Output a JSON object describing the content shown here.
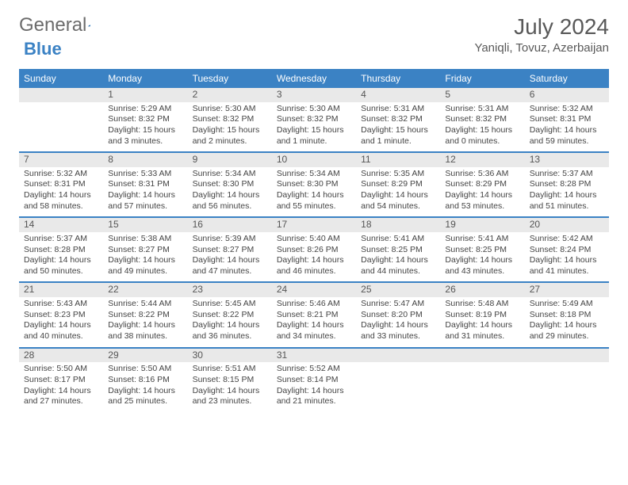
{
  "logo": {
    "word1": "General",
    "word2": "Blue"
  },
  "title": "July 2024",
  "location": "Yaniqli, Tovuz, Azerbaijan",
  "colors": {
    "header_bg": "#3b82c4",
    "header_text": "#ffffff",
    "daynum_bg": "#e9e9e9",
    "text": "#444444",
    "title_color": "#595959"
  },
  "typography": {
    "title_fontsize": 28,
    "location_fontsize": 15,
    "header_fontsize": 12,
    "cell_fontsize": 10.5
  },
  "dayNames": [
    "Sunday",
    "Monday",
    "Tuesday",
    "Wednesday",
    "Thursday",
    "Friday",
    "Saturday"
  ],
  "weeks": [
    [
      {
        "n": "",
        "empty": true
      },
      {
        "n": "1",
        "sunrise": "Sunrise: 5:29 AM",
        "sunset": "Sunset: 8:32 PM",
        "daylight": "Daylight: 15 hours and 3 minutes."
      },
      {
        "n": "2",
        "sunrise": "Sunrise: 5:30 AM",
        "sunset": "Sunset: 8:32 PM",
        "daylight": "Daylight: 15 hours and 2 minutes."
      },
      {
        "n": "3",
        "sunrise": "Sunrise: 5:30 AM",
        "sunset": "Sunset: 8:32 PM",
        "daylight": "Daylight: 15 hours and 1 minute."
      },
      {
        "n": "4",
        "sunrise": "Sunrise: 5:31 AM",
        "sunset": "Sunset: 8:32 PM",
        "daylight": "Daylight: 15 hours and 1 minute."
      },
      {
        "n": "5",
        "sunrise": "Sunrise: 5:31 AM",
        "sunset": "Sunset: 8:32 PM",
        "daylight": "Daylight: 15 hours and 0 minutes."
      },
      {
        "n": "6",
        "sunrise": "Sunrise: 5:32 AM",
        "sunset": "Sunset: 8:31 PM",
        "daylight": "Daylight: 14 hours and 59 minutes."
      }
    ],
    [
      {
        "n": "7",
        "sunrise": "Sunrise: 5:32 AM",
        "sunset": "Sunset: 8:31 PM",
        "daylight": "Daylight: 14 hours and 58 minutes."
      },
      {
        "n": "8",
        "sunrise": "Sunrise: 5:33 AM",
        "sunset": "Sunset: 8:31 PM",
        "daylight": "Daylight: 14 hours and 57 minutes."
      },
      {
        "n": "9",
        "sunrise": "Sunrise: 5:34 AM",
        "sunset": "Sunset: 8:30 PM",
        "daylight": "Daylight: 14 hours and 56 minutes."
      },
      {
        "n": "10",
        "sunrise": "Sunrise: 5:34 AM",
        "sunset": "Sunset: 8:30 PM",
        "daylight": "Daylight: 14 hours and 55 minutes."
      },
      {
        "n": "11",
        "sunrise": "Sunrise: 5:35 AM",
        "sunset": "Sunset: 8:29 PM",
        "daylight": "Daylight: 14 hours and 54 minutes."
      },
      {
        "n": "12",
        "sunrise": "Sunrise: 5:36 AM",
        "sunset": "Sunset: 8:29 PM",
        "daylight": "Daylight: 14 hours and 53 minutes."
      },
      {
        "n": "13",
        "sunrise": "Sunrise: 5:37 AM",
        "sunset": "Sunset: 8:28 PM",
        "daylight": "Daylight: 14 hours and 51 minutes."
      }
    ],
    [
      {
        "n": "14",
        "sunrise": "Sunrise: 5:37 AM",
        "sunset": "Sunset: 8:28 PM",
        "daylight": "Daylight: 14 hours and 50 minutes."
      },
      {
        "n": "15",
        "sunrise": "Sunrise: 5:38 AM",
        "sunset": "Sunset: 8:27 PM",
        "daylight": "Daylight: 14 hours and 49 minutes."
      },
      {
        "n": "16",
        "sunrise": "Sunrise: 5:39 AM",
        "sunset": "Sunset: 8:27 PM",
        "daylight": "Daylight: 14 hours and 47 minutes."
      },
      {
        "n": "17",
        "sunrise": "Sunrise: 5:40 AM",
        "sunset": "Sunset: 8:26 PM",
        "daylight": "Daylight: 14 hours and 46 minutes."
      },
      {
        "n": "18",
        "sunrise": "Sunrise: 5:41 AM",
        "sunset": "Sunset: 8:25 PM",
        "daylight": "Daylight: 14 hours and 44 minutes."
      },
      {
        "n": "19",
        "sunrise": "Sunrise: 5:41 AM",
        "sunset": "Sunset: 8:25 PM",
        "daylight": "Daylight: 14 hours and 43 minutes."
      },
      {
        "n": "20",
        "sunrise": "Sunrise: 5:42 AM",
        "sunset": "Sunset: 8:24 PM",
        "daylight": "Daylight: 14 hours and 41 minutes."
      }
    ],
    [
      {
        "n": "21",
        "sunrise": "Sunrise: 5:43 AM",
        "sunset": "Sunset: 8:23 PM",
        "daylight": "Daylight: 14 hours and 40 minutes."
      },
      {
        "n": "22",
        "sunrise": "Sunrise: 5:44 AM",
        "sunset": "Sunset: 8:22 PM",
        "daylight": "Daylight: 14 hours and 38 minutes."
      },
      {
        "n": "23",
        "sunrise": "Sunrise: 5:45 AM",
        "sunset": "Sunset: 8:22 PM",
        "daylight": "Daylight: 14 hours and 36 minutes."
      },
      {
        "n": "24",
        "sunrise": "Sunrise: 5:46 AM",
        "sunset": "Sunset: 8:21 PM",
        "daylight": "Daylight: 14 hours and 34 minutes."
      },
      {
        "n": "25",
        "sunrise": "Sunrise: 5:47 AM",
        "sunset": "Sunset: 8:20 PM",
        "daylight": "Daylight: 14 hours and 33 minutes."
      },
      {
        "n": "26",
        "sunrise": "Sunrise: 5:48 AM",
        "sunset": "Sunset: 8:19 PM",
        "daylight": "Daylight: 14 hours and 31 minutes."
      },
      {
        "n": "27",
        "sunrise": "Sunrise: 5:49 AM",
        "sunset": "Sunset: 8:18 PM",
        "daylight": "Daylight: 14 hours and 29 minutes."
      }
    ],
    [
      {
        "n": "28",
        "sunrise": "Sunrise: 5:50 AM",
        "sunset": "Sunset: 8:17 PM",
        "daylight": "Daylight: 14 hours and 27 minutes."
      },
      {
        "n": "29",
        "sunrise": "Sunrise: 5:50 AM",
        "sunset": "Sunset: 8:16 PM",
        "daylight": "Daylight: 14 hours and 25 minutes."
      },
      {
        "n": "30",
        "sunrise": "Sunrise: 5:51 AM",
        "sunset": "Sunset: 8:15 PM",
        "daylight": "Daylight: 14 hours and 23 minutes."
      },
      {
        "n": "31",
        "sunrise": "Sunrise: 5:52 AM",
        "sunset": "Sunset: 8:14 PM",
        "daylight": "Daylight: 14 hours and 21 minutes."
      },
      {
        "n": "",
        "empty": true
      },
      {
        "n": "",
        "empty": true
      },
      {
        "n": "",
        "empty": true
      }
    ]
  ]
}
